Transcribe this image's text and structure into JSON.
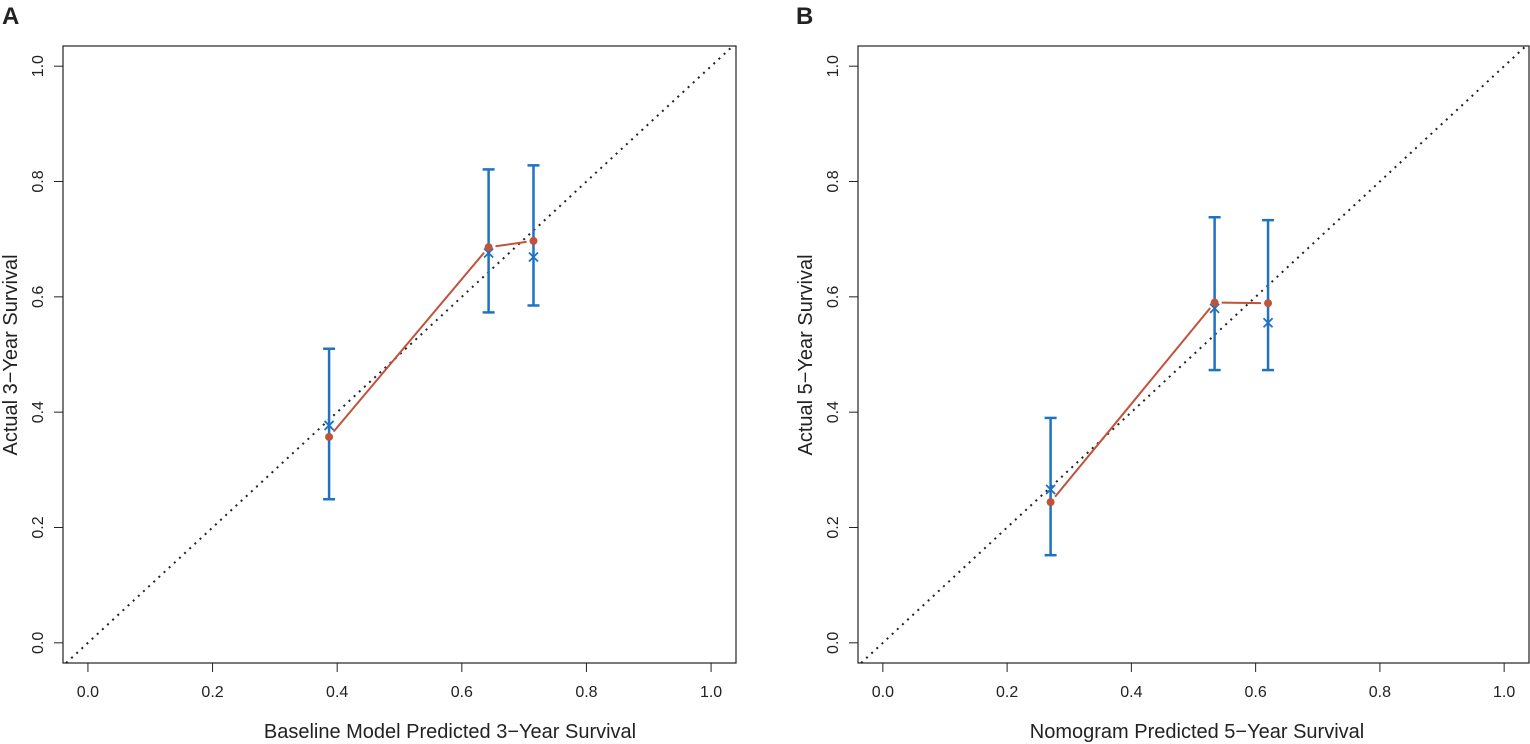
{
  "colors": {
    "calibration": "#c0533a",
    "ci": "#1f72c4",
    "axis": "#222222",
    "reference": "#222222"
  },
  "chart_data": [
    {
      "panel_label": "A",
      "type": "scatter",
      "title": "",
      "xlabel": "Baseline Model Predicted 3−Year Survival",
      "ylabel": "Actual 3−Year Survival",
      "xlim": [
        -0.04,
        1.04
      ],
      "ylim": [
        -0.035,
        1.035
      ],
      "xticks": [
        0.0,
        0.2,
        0.4,
        0.6,
        0.8,
        1.0
      ],
      "yticks": [
        0.0,
        0.2,
        0.4,
        0.6,
        0.8,
        1.0
      ],
      "xtick_labels": [
        "0.0",
        "0.2",
        "0.4",
        "0.6",
        "0.8",
        "1.0"
      ],
      "ytick_labels": [
        "0.0",
        "0.2",
        "0.4",
        "0.6",
        "0.8",
        "1.0"
      ],
      "reference_line": {
        "from": [
          0,
          0
        ],
        "to": [
          1,
          1
        ],
        "style": "dotted"
      },
      "series": [
        {
          "name": "Calibration",
          "x": [
            0.387,
            0.643,
            0.715
          ],
          "y": [
            0.357,
            0.686,
            0.697
          ]
        },
        {
          "name": "Observed (Kaplan-Meier)",
          "x": [
            0.387,
            0.643,
            0.715
          ],
          "y": [
            0.377,
            0.676,
            0.669
          ],
          "ci_lower": [
            0.249,
            0.573,
            0.585
          ],
          "ci_upper": [
            0.51,
            0.821,
            0.828
          ]
        }
      ]
    },
    {
      "panel_label": "B",
      "type": "scatter",
      "title": "",
      "xlabel": "Nomogram Predicted 5−Year Survival",
      "ylabel": "Actual 5−Year Survival",
      "xlim": [
        -0.04,
        1.04
      ],
      "ylim": [
        -0.035,
        1.035
      ],
      "xticks": [
        0.0,
        0.2,
        0.4,
        0.6,
        0.8,
        1.0
      ],
      "yticks": [
        0.0,
        0.2,
        0.4,
        0.6,
        0.8,
        1.0
      ],
      "xtick_labels": [
        "0.0",
        "0.2",
        "0.4",
        "0.6",
        "0.8",
        "1.0"
      ],
      "ytick_labels": [
        "0.0",
        "0.2",
        "0.4",
        "0.6",
        "0.8",
        "1.0"
      ],
      "reference_line": {
        "from": [
          0,
          0
        ],
        "to": [
          1,
          1
        ],
        "style": "dotted"
      },
      "series": [
        {
          "name": "Calibration",
          "x": [
            0.27,
            0.534,
            0.62
          ],
          "y": [
            0.244,
            0.59,
            0.589
          ]
        },
        {
          "name": "Observed (Kaplan-Meier)",
          "x": [
            0.27,
            0.534,
            0.62
          ],
          "y": [
            0.266,
            0.58,
            0.555
          ],
          "ci_lower": [
            0.152,
            0.473,
            0.473
          ],
          "ci_upper": [
            0.39,
            0.738,
            0.733
          ]
        }
      ]
    }
  ]
}
